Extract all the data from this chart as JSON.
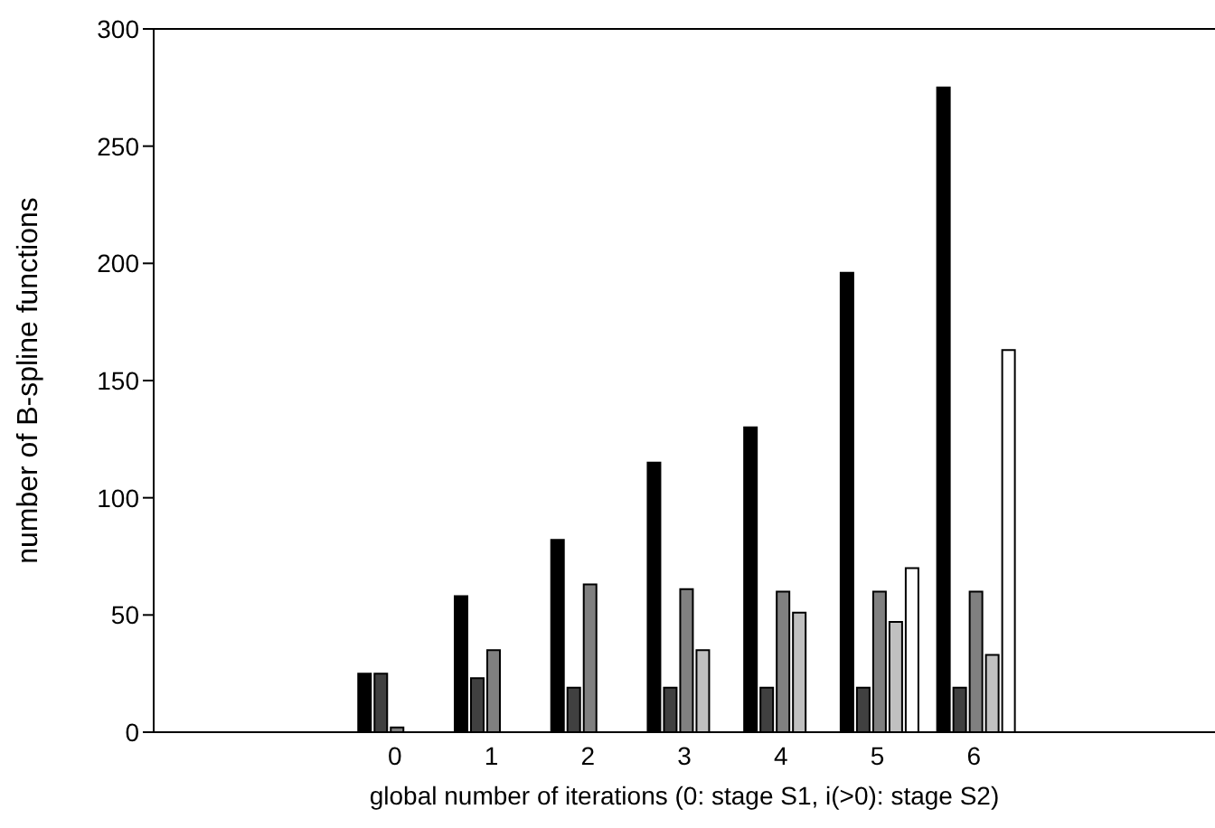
{
  "chart_data": {
    "type": "bar",
    "xlabel": "global number of iterations (0: stage S1, i(>0): stage S2)",
    "ylabel": "number of B-spline functions",
    "categories": [
      null,
      null,
      "0",
      "1",
      "2",
      "3",
      "4",
      "5",
      "6",
      null,
      null
    ],
    "series": [
      {
        "color": "#000000",
        "values": [
          null,
          null,
          25,
          58,
          82,
          115,
          130,
          196,
          275,
          null,
          null
        ]
      },
      {
        "color": "#404040",
        "values": [
          null,
          null,
          25,
          23,
          19,
          19,
          19,
          19,
          19,
          null,
          null
        ]
      },
      {
        "color": "#808080",
        "values": [
          null,
          null,
          2,
          35,
          63,
          61,
          60,
          60,
          60,
          null,
          null
        ]
      },
      {
        "color": "#c0c0c0",
        "values": [
          null,
          null,
          0,
          0,
          0,
          35,
          51,
          47,
          33,
          null,
          null
        ]
      },
      {
        "color": "#ffffff",
        "values": [
          null,
          null,
          0,
          0,
          0,
          0,
          0,
          70,
          163,
          null,
          null
        ]
      }
    ],
    "ylim": [
      0,
      300
    ],
    "yticks": [
      0,
      50,
      100,
      150,
      200,
      250,
      300
    ]
  }
}
